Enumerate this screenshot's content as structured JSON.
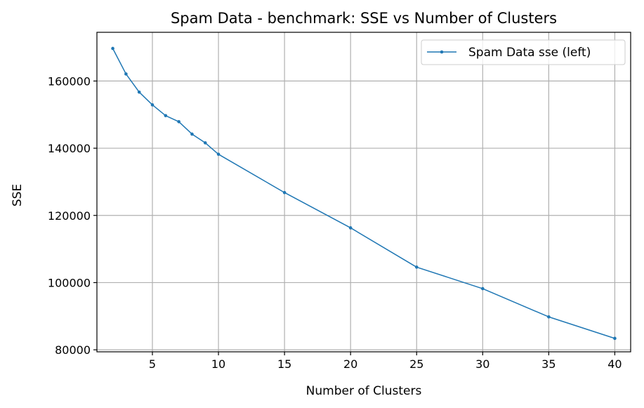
{
  "chart_data": {
    "type": "line",
    "title": "Spam Data - benchmark: SSE vs Number of Clusters",
    "xlabel": "Number of Clusters",
    "ylabel": "SSE",
    "xlim": [
      0.8,
      41.2
    ],
    "ylim": [
      79400,
      174500
    ],
    "xticks": [
      5,
      10,
      15,
      20,
      25,
      30,
      35,
      40
    ],
    "yticks": [
      80000,
      100000,
      120000,
      140000,
      160000
    ],
    "grid": true,
    "legend_position": "top-right",
    "series": [
      {
        "name": "Spam Data sse (left)",
        "color": "#1f77b4",
        "x": [
          2,
          3,
          4,
          5,
          6,
          7,
          8,
          9,
          10,
          15,
          20,
          25,
          30,
          35,
          40
        ],
        "y": [
          169700,
          162100,
          156700,
          152900,
          149700,
          147900,
          144200,
          141600,
          138200,
          126800,
          116300,
          104600,
          98200,
          89800,
          83400
        ]
      }
    ]
  }
}
